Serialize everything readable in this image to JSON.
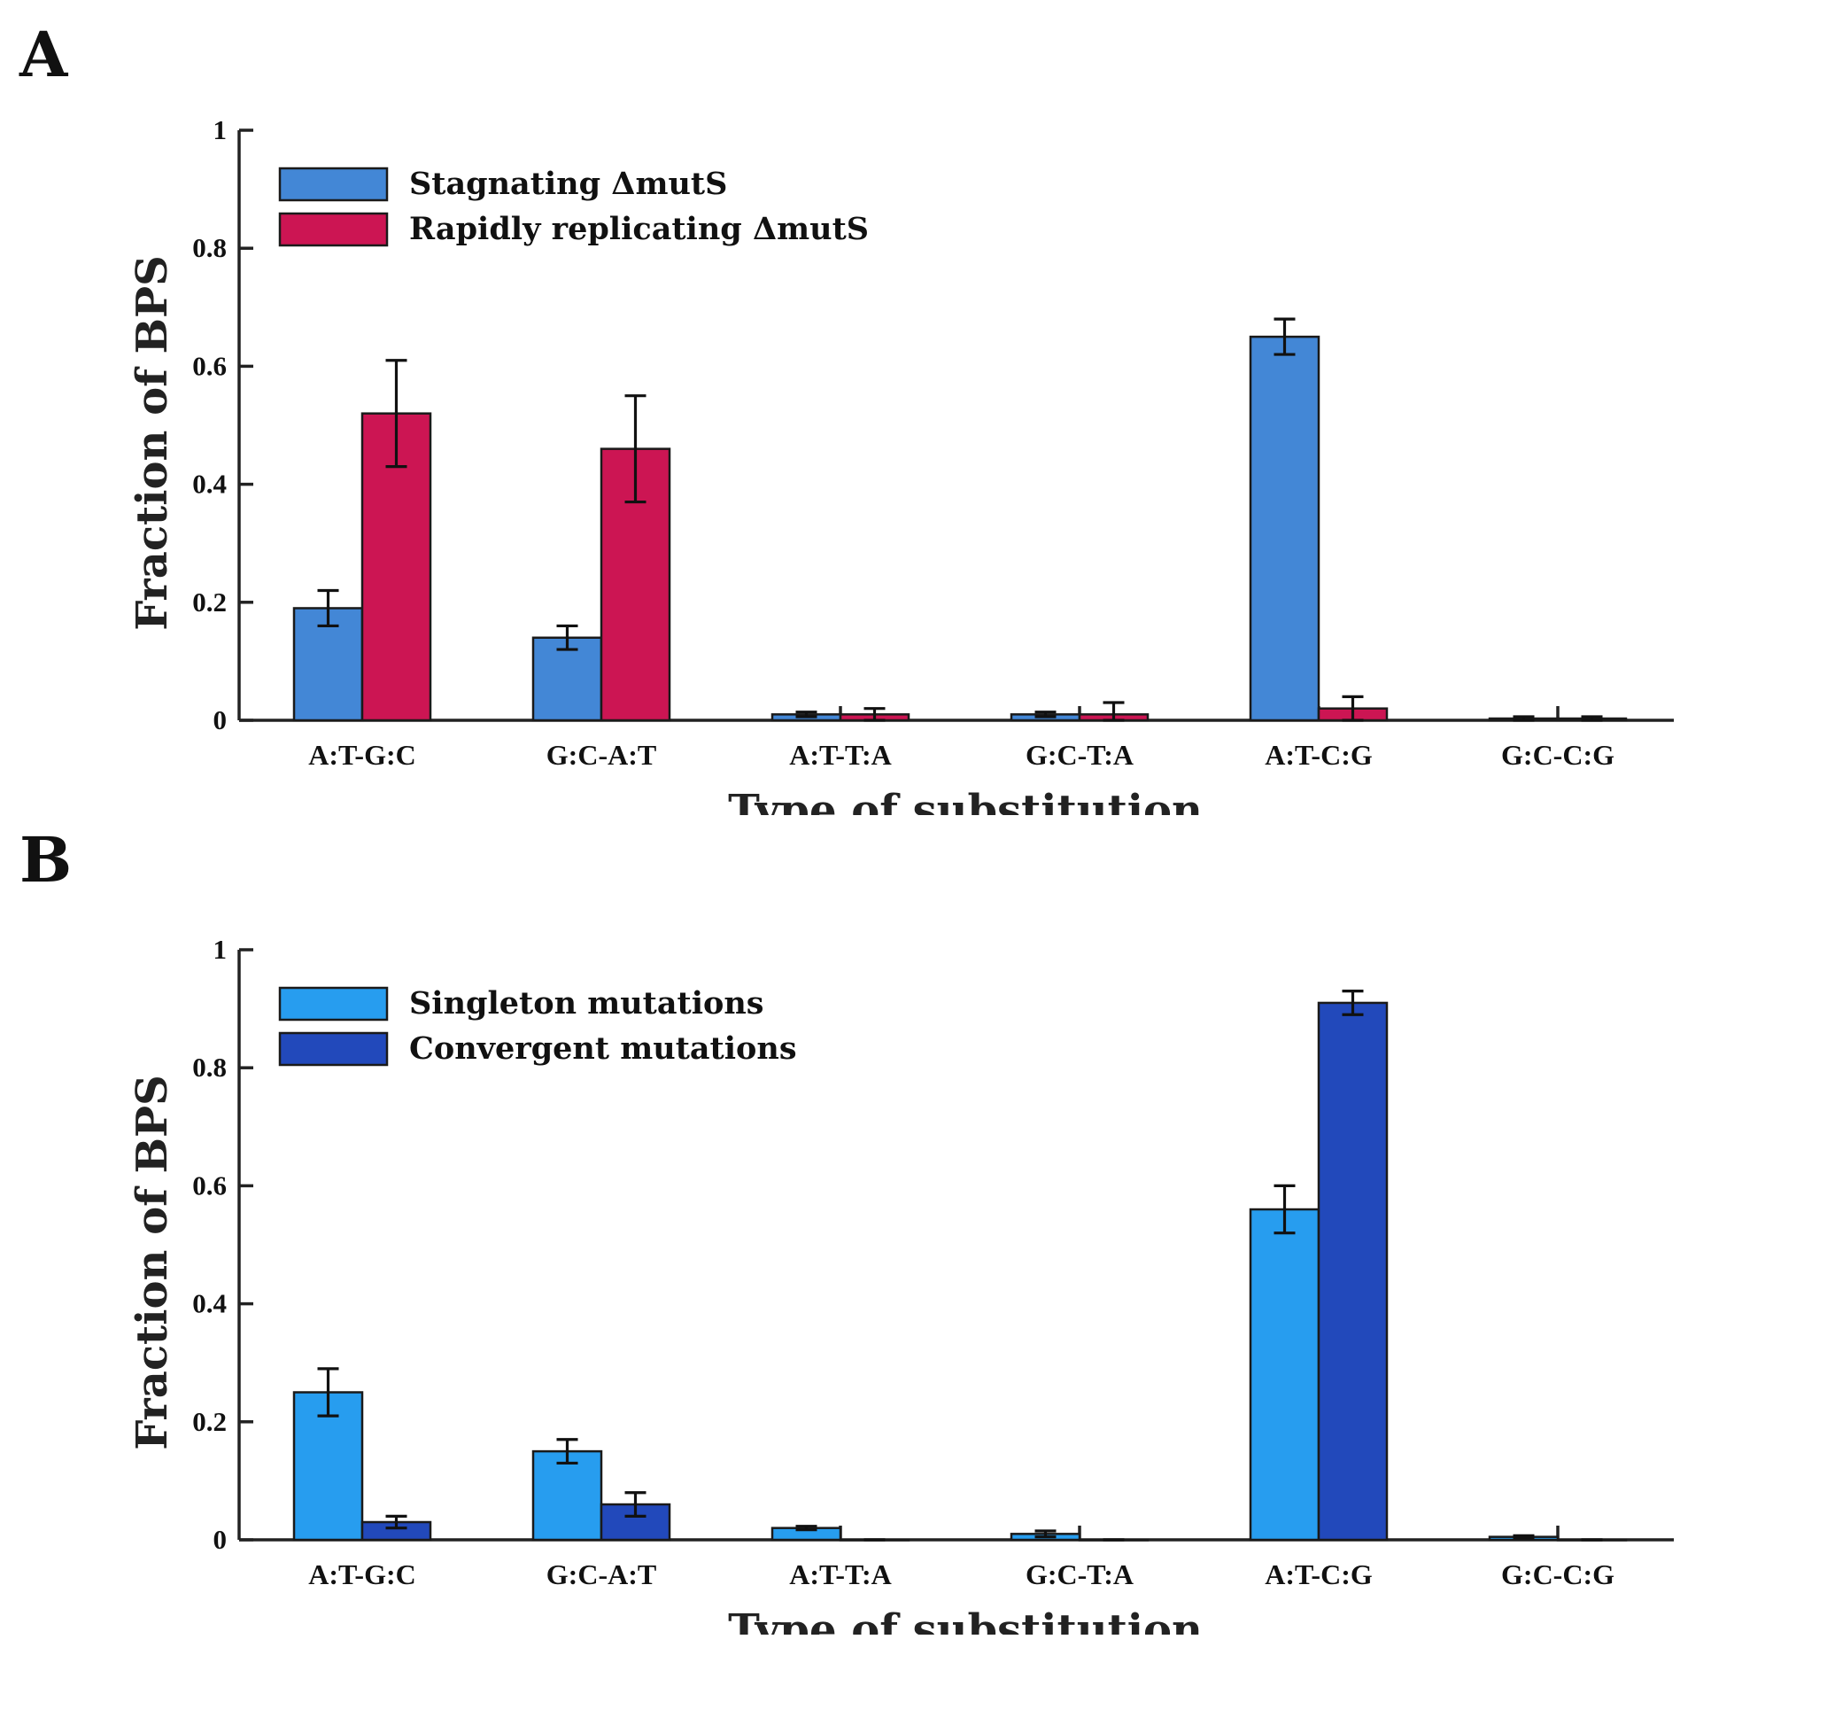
{
  "chart_data": [
    {
      "panel_label": "A",
      "type": "bar",
      "xlabel": "Type of substitution",
      "ylabel": "Fraction of BPS",
      "ylim": [
        0,
        1
      ],
      "yticks": [
        "0",
        "0.2",
        "0.4",
        "0.6",
        "0.8",
        "1"
      ],
      "categories": [
        "A:T-G:C",
        "G:C-A:T",
        "A:T-T:A",
        "G:C-T:A",
        "A:T-C:G",
        "G:C-C:G"
      ],
      "legend_position": "top-left",
      "series": [
        {
          "name": "Stagnating ΔmutS",
          "color": "#4387d6",
          "values": [
            0.19,
            0.14,
            0.01,
            0.01,
            0.65,
            0.003
          ],
          "errors": [
            0.03,
            0.02,
            0.004,
            0.004,
            0.03,
            0.003
          ]
        },
        {
          "name": "Rapidly replicating ΔmutS",
          "color": "#cc1553",
          "values": [
            0.52,
            0.46,
            0.01,
            0.01,
            0.02,
            0.003
          ],
          "errors": [
            0.09,
            0.09,
            0.01,
            0.02,
            0.02,
            0.003
          ]
        }
      ]
    },
    {
      "panel_label": "B",
      "type": "bar",
      "xlabel": "Type of substitution",
      "ylabel": "Fraction of BPS",
      "ylim": [
        0,
        1
      ],
      "yticks": [
        "0",
        "0.2",
        "0.4",
        "0.6",
        "0.8",
        "1"
      ],
      "categories": [
        "A:T-G:C",
        "G:C-A:T",
        "A:T-T:A",
        "G:C-T:A",
        "A:T-C:G",
        "G:C-C:G"
      ],
      "legend_position": "top-left",
      "series": [
        {
          "name": "Singleton mutations",
          "color": "#279def",
          "values": [
            0.25,
            0.15,
            0.02,
            0.01,
            0.56,
            0.005
          ],
          "errors": [
            0.04,
            0.02,
            0.003,
            0.005,
            0.04,
            0.002
          ]
        },
        {
          "name": "Convergent mutations",
          "color": "#2249bb",
          "values": [
            0.03,
            0.06,
            0.0,
            0.0,
            0.91,
            0.0
          ],
          "errors": [
            0.01,
            0.02,
            0.0,
            0.0,
            0.02,
            0.0
          ]
        }
      ]
    }
  ]
}
